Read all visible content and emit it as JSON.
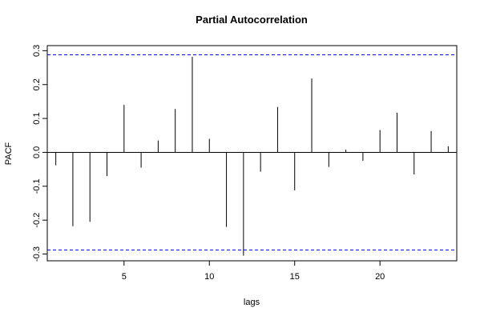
{
  "chart_data": {
    "type": "bar",
    "title": "Partial Autocorrelation",
    "xlabel": "lags",
    "ylabel": "PACF",
    "x": [
      1,
      2,
      3,
      4,
      5,
      6,
      7,
      8,
      9,
      10,
      11,
      12,
      13,
      14,
      15,
      16,
      17,
      18,
      19,
      20,
      21,
      22,
      23,
      24
    ],
    "values": [
      -0.038,
      -0.218,
      -0.205,
      -0.07,
      0.14,
      -0.045,
      0.035,
      0.128,
      0.282,
      0.04,
      -0.22,
      -0.305,
      -0.057,
      0.134,
      -0.112,
      0.218,
      -0.043,
      0.008,
      -0.025,
      0.066,
      0.117,
      -0.065,
      0.063,
      0.018
    ],
    "confidence_bound": 0.288,
    "xlim": [
      0.5,
      24.5
    ],
    "ylim": [
      -0.32,
      0.315
    ],
    "x_ticks": [
      5,
      10,
      15,
      20
    ],
    "y_ticks": [
      -0.3,
      -0.2,
      -0.1,
      0.0,
      0.1,
      0.2,
      0.3
    ],
    "y_tick_labels": [
      "-0.3",
      "-0.2",
      "-0.1",
      "0.0",
      "0.1",
      "0.2",
      "0.3"
    ],
    "colors": {
      "bars": "#000000",
      "bounds": "#0000ff",
      "zero_line": "#000000",
      "frame": "#000000"
    },
    "grid": false,
    "legend": "none"
  }
}
